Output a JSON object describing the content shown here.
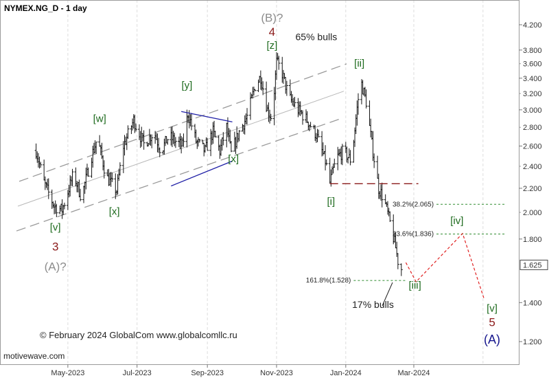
{
  "chart_data": {
    "type": "ohlc",
    "title": "NYMEX.NG_D - 1 day",
    "watermark": "motivewave.com",
    "copyright": "© February 2024 GlobalCom www.globalcomllc.ru",
    "y_axis": {
      "scale": "log",
      "ticks": [
        "4.200",
        "3.800",
        "3.400",
        "3.000",
        "2.600",
        "2.200",
        "1.800",
        "1.400",
        "1.200"
      ],
      "minor_ticks": [
        "3.600",
        "3.200",
        "2.800",
        "2.400",
        "2.000"
      ],
      "range": [
        1.14,
        4.65
      ]
    },
    "x_axis": {
      "ticks": [
        "May-2023",
        "Jul-2023",
        "Sep-2023",
        "Nov-2023",
        "Jan-2024",
        "Mar-2024"
      ]
    },
    "last_price": "1.625",
    "price_path": [
      [
        "2023-04-01",
        2.65
      ],
      [
        "2023-04-10",
        2.25
      ],
      [
        "2023-04-19",
        2.05
      ],
      [
        "2023-04-26",
        2.02
      ],
      [
        "2023-05-06",
        2.33
      ],
      [
        "2023-05-13",
        2.12
      ],
      [
        "2023-05-22",
        2.5
      ],
      [
        "2023-05-27",
        2.68
      ],
      [
        "2023-06-04",
        2.3
      ],
      [
        "2023-06-13",
        2.18
      ],
      [
        "2023-06-19",
        2.6
      ],
      [
        "2023-06-28",
        2.88
      ],
      [
        "2023-07-07",
        2.62
      ],
      [
        "2023-07-16",
        2.75
      ],
      [
        "2023-07-22",
        2.55
      ],
      [
        "2023-07-29",
        2.7
      ],
      [
        "2023-08-10",
        2.6
      ],
      [
        "2023-08-15",
        2.96
      ],
      [
        "2023-08-22",
        2.65
      ],
      [
        "2023-08-30",
        2.55
      ],
      [
        "2023-09-06",
        2.75
      ],
      [
        "2023-09-12",
        2.55
      ],
      [
        "2023-09-18",
        2.8
      ],
      [
        "2023-09-22",
        2.52
      ],
      [
        "2023-09-29",
        2.75
      ],
      [
        "2023-10-06",
        2.92
      ],
      [
        "2023-10-13",
        3.3
      ],
      [
        "2023-10-18",
        3.42
      ],
      [
        "2023-10-24",
        3.0
      ],
      [
        "2023-10-28",
        2.9
      ],
      [
        "2023-11-01",
        3.62
      ],
      [
        "2023-11-05",
        3.52
      ],
      [
        "2023-11-12",
        3.15
      ],
      [
        "2023-11-20",
        3.0
      ],
      [
        "2023-11-28",
        2.88
      ],
      [
        "2023-12-06",
        2.72
      ],
      [
        "2023-12-14",
        2.45
      ],
      [
        "2023-12-18",
        2.25
      ],
      [
        "2023-12-24",
        2.48
      ],
      [
        "2023-12-30",
        2.55
      ],
      [
        "2024-01-06",
        2.45
      ],
      [
        "2024-01-10",
        2.9
      ],
      [
        "2024-01-14",
        3.38
      ],
      [
        "2024-01-19",
        3.1
      ],
      [
        "2024-01-24",
        2.62
      ],
      [
        "2024-01-30",
        2.2
      ],
      [
        "2024-02-04",
        2.1
      ],
      [
        "2024-02-09",
        1.92
      ],
      [
        "2024-02-14",
        1.74
      ],
      [
        "2024-02-17",
        1.61
      ],
      [
        "2024-02-19",
        1.6
      ]
    ],
    "channel": {
      "lower": [
        [
          "2023-04-20",
          1.96
        ],
        [
          "2023-12-01",
          2.78
        ]
      ],
      "upper": [
        [
          "2023-04-20",
          2.38
        ],
        [
          "2024-01-14",
          3.67
        ]
      ]
    },
    "wave_labels": [
      {
        "text": "[v]",
        "date": "2023-04-20",
        "price": 1.86,
        "style": "green"
      },
      {
        "text": "3",
        "date": "2023-04-20",
        "price": 1.72,
        "style": "red"
      },
      {
        "text": "(A)?",
        "date": "2023-04-20",
        "price": 1.59,
        "style": "gray"
      },
      {
        "text": "[w]",
        "date": "2023-05-29",
        "price": 2.86,
        "style": "green"
      },
      {
        "text": "[x]",
        "date": "2023-06-11",
        "price": 1.98,
        "style": "green"
      },
      {
        "text": "[y]",
        "date": "2023-08-14",
        "price": 3.26,
        "style": "green"
      },
      {
        "text": "[x]",
        "date": "2023-09-24",
        "price": 2.44,
        "style": "green"
      },
      {
        "text": "(B)?",
        "date": "2023-10-28",
        "price": 4.25,
        "style": "gray"
      },
      {
        "text": "4",
        "date": "2023-10-28",
        "price": 4.02,
        "style": "red"
      },
      {
        "text": "[z]",
        "date": "2023-10-28",
        "price": 3.82,
        "style": "green"
      },
      {
        "text": "[ii]",
        "date": "2024-01-13",
        "price": 3.56,
        "style": "green"
      },
      {
        "text": "[i]",
        "date": "2023-12-19",
        "price": 2.06,
        "style": "green"
      },
      {
        "text": "[iii]",
        "date": "2024-03-02",
        "price": 1.48,
        "style": "green"
      },
      {
        "text": "[iv]",
        "date": "2024-04-08",
        "price": 1.91,
        "style": "green"
      },
      {
        "text": "[v]",
        "date": "2024-05-09",
        "price": 1.35,
        "style": "green"
      },
      {
        "text": "5",
        "date": "2024-05-09",
        "price": 1.275,
        "style": "red"
      },
      {
        "text": "(A)",
        "date": "2024-05-09",
        "price": 1.19,
        "style": "navy"
      }
    ],
    "notes": [
      {
        "text": "65% bulls",
        "date": "2023-12-06",
        "price": 3.95
      },
      {
        "text": "17% bulls",
        "date": "2024-01-25",
        "price": 1.37
      }
    ],
    "fib_levels": [
      {
        "label": "38.2%(2.065)",
        "value": 2.065,
        "from": "2024-03-21",
        "to": "2024-05-21"
      },
      {
        "label": "23.6%(1.836)",
        "value": 1.836,
        "from": "2024-03-21",
        "to": "2024-05-21"
      },
      {
        "label": "161.8%(1.528)",
        "value": 1.528,
        "from": "2024-01-08",
        "to": "2024-02-23"
      }
    ],
    "support_line": {
      "value": 2.24,
      "from": "2023-12-18",
      "to": "2024-03-05"
    },
    "projection": [
      [
        "2024-02-23",
        1.64
      ],
      [
        "2024-03-03",
        1.52
      ],
      [
        "2024-04-13",
        1.84
      ],
      [
        "2024-05-02",
        1.42
      ]
    ],
    "blue_lines": [
      [
        [
          "2023-08-09",
          2.98
        ],
        [
          "2023-09-23",
          2.86
        ]
      ],
      [
        [
          "2023-07-31",
          2.22
        ],
        [
          "2023-09-23",
          2.45
        ]
      ]
    ]
  }
}
